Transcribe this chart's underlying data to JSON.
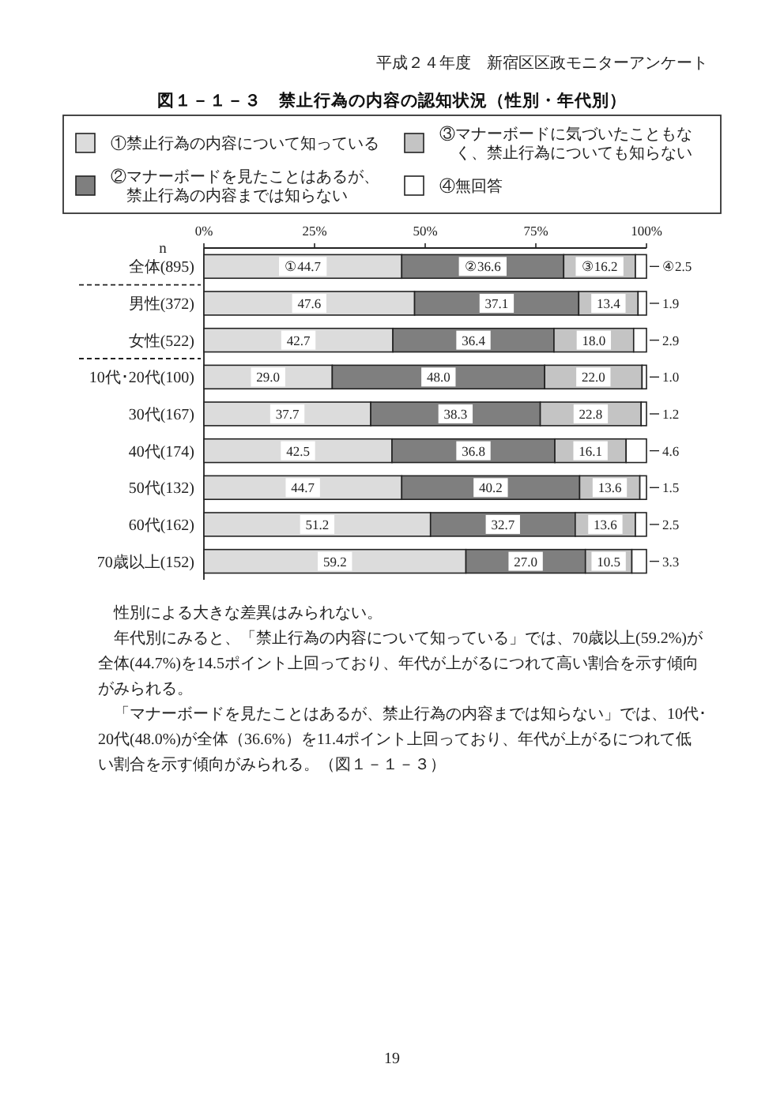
{
  "chart_data": {
    "type": "bar",
    "orientation": "horizontal",
    "stacked": true,
    "title": "図１－１－３　禁止行為の内容の認知状況（性別・年代別）",
    "ylabel": "n",
    "categories": [
      "全体(895)",
      "男性(372)",
      "女性(522)",
      "10代･20代(100)",
      "30代(167)",
      "40代(174)",
      "50代(132)",
      "60代(162)",
      "70歳以上(152)"
    ],
    "series": [
      {
        "name": "①禁止行為の内容について知っている",
        "color": "#dcdcdc",
        "values": [
          44.7,
          47.6,
          42.7,
          29.0,
          37.7,
          42.5,
          44.7,
          51.2,
          59.2
        ],
        "value_labels": [
          "①44.7",
          "47.6",
          "42.7",
          "29.0",
          "37.7",
          "42.5",
          "44.7",
          "51.2",
          "59.2"
        ]
      },
      {
        "name": "②マナーボードを見たことはあるが、禁止行為の内容までは知らない",
        "color": "#7f7f7f",
        "values": [
          36.6,
          37.1,
          36.4,
          48.0,
          38.3,
          36.8,
          40.2,
          32.7,
          27.0
        ],
        "value_labels": [
          "②36.6",
          "37.1",
          "36.4",
          "48.0",
          "38.3",
          "36.8",
          "40.2",
          "32.7",
          "27.0"
        ]
      },
      {
        "name": "③マナーボードに気づいたこともなく、禁止行為についても知らない",
        "color": "#c4c4c4",
        "values": [
          16.2,
          13.4,
          18.0,
          22.0,
          22.8,
          16.1,
          13.6,
          13.6,
          10.5
        ],
        "value_labels": [
          "③16.2",
          "13.4",
          "18.0",
          "22.0",
          "22.8",
          "16.1",
          "13.6",
          "13.6",
          "10.5"
        ]
      },
      {
        "name": "④無回答",
        "color": "#ffffff",
        "values": [
          2.5,
          1.9,
          2.9,
          1.0,
          1.2,
          4.6,
          1.5,
          2.5,
          3.3
        ],
        "value_labels": [
          "④2.5",
          "1.9",
          "2.9",
          "1.0",
          "1.2",
          "4.6",
          "1.5",
          "2.5",
          "3.3"
        ]
      }
    ],
    "xlim": [
      0,
      100
    ],
    "xticks": [
      {
        "value": 0,
        "label": "0%"
      },
      {
        "value": 25,
        "label": "25%"
      },
      {
        "value": 50,
        "label": "50%"
      },
      {
        "value": 75,
        "label": "75%"
      },
      {
        "value": 100,
        "label": "100%"
      }
    ],
    "legend": "top",
    "annotations": [
      "平成２４年度　新宿区区政モニターアンケート",
      "性別による大きな差異はみられない。",
      "年代別にみると、「禁止行為の内容について知っている」では、70歳以上(59.2%)が全体(44.7%)を14.5ポイント上回っており、年代が上がるにつれて高い割合を示す傾向がみられる。",
      "「マナーボードを見たことはあるが、禁止行為の内容までは知らない」では、10代･20代(48.0%)が全体（36.6%）を11.4ポイント上回っており、年代が上がるにつれて低い割合を示す傾向がみられる。（図１－１－３）",
      "19"
    ]
  }
}
